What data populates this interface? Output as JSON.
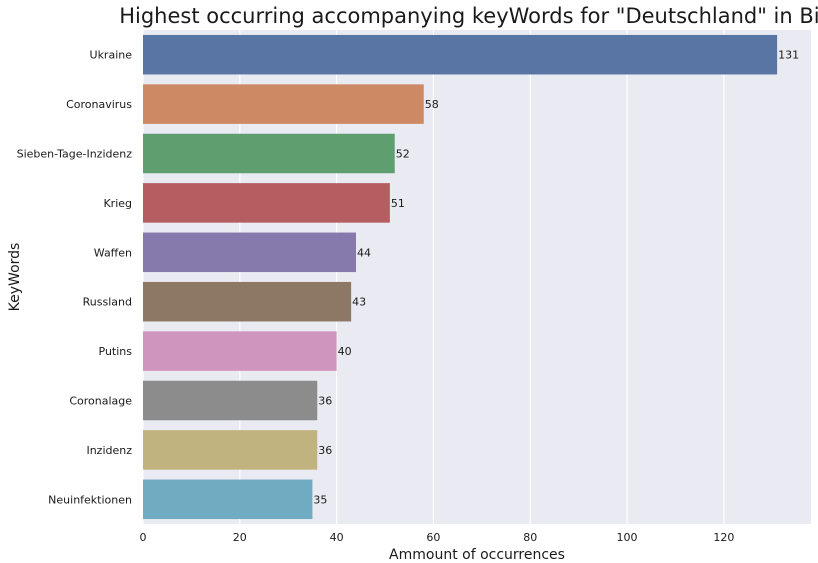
{
  "chart_data": {
    "type": "bar",
    "orientation": "horizontal",
    "title": "Highest occurring accompanying keyWords for \"Deutschland\" in Bild",
    "xlabel": "Ammount of occurrences",
    "ylabel": "KeyWords",
    "xlim": [
      0,
      138
    ],
    "xticks": [
      0,
      20,
      40,
      60,
      80,
      100,
      120
    ],
    "grid": true,
    "categories": [
      "Ukraine",
      "Coronavirus",
      "Sieben-Tage-Inzidenz",
      "Krieg",
      "Waffen",
      "Russland",
      "Putins",
      "Coronalage",
      "Inzidenz",
      "Neuinfektionen"
    ],
    "values": [
      131,
      58,
      52,
      51,
      44,
      43,
      40,
      36,
      36,
      35
    ],
    "colors": [
      "#5875a4",
      "#cc8963",
      "#5f9e6e",
      "#b55d60",
      "#857aab",
      "#8d7866",
      "#d095bf",
      "#8c8c8c",
      "#c1b37f",
      "#6fabc1"
    ],
    "background": "#eaeaf2",
    "gridColor": "#ffffff"
  }
}
